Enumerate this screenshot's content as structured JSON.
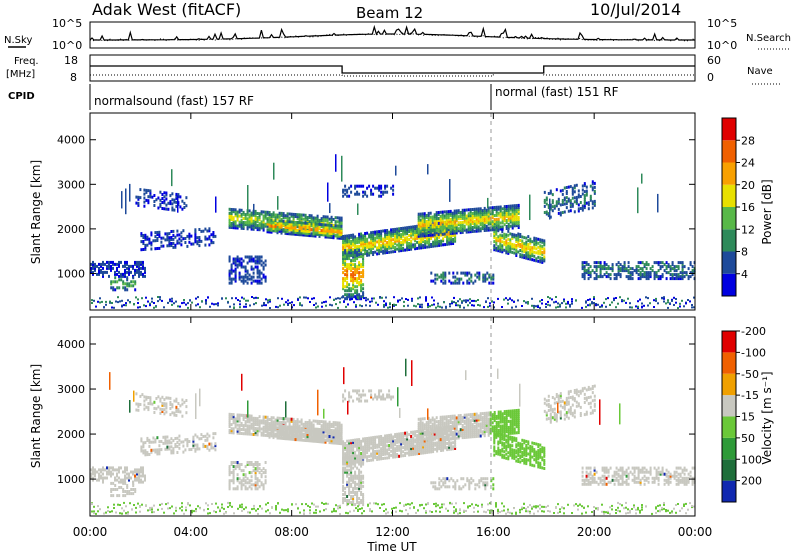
{
  "header": {
    "station": "Adak West (fitACF)",
    "beam": "Beam 12",
    "date": "10/Jul/2014"
  },
  "nsky_panel": {
    "left_label": "N.Sky",
    "right_label": "N.Search",
    "y_top": "10^5",
    "y_bottom": "10^0",
    "y_top_right": "10^5",
    "y_bottom_right": "10^0"
  },
  "freq_panel": {
    "left_label": "Freq.",
    "unit": "[MHz]",
    "right_label": "Nave",
    "ticks_left": [
      "18",
      "8"
    ],
    "ticks_right": [
      "60",
      "0"
    ],
    "cpid_label": "CPID",
    "programs": [
      "normalsound (fast) 157 RF",
      "normal (fast) 151 RF"
    ]
  },
  "chart_data": [
    {
      "type": "heatmap",
      "title": "Power",
      "ylabel": "Slant Range [km]",
      "xlabel": "Time UT",
      "ylim": [
        180,
        4600
      ],
      "xlim": [
        0,
        24
      ],
      "y_ticks": [
        "1000",
        "2000",
        "3000",
        "4000"
      ],
      "x_ticks": [
        "00:00",
        "04:00",
        "08:00",
        "12:00",
        "16:00",
        "20:00",
        "00:00"
      ],
      "colorbar": {
        "label": "Power [dB]",
        "ticks": [
          "4",
          "8",
          "12",
          "16",
          "20",
          "24",
          "28"
        ],
        "colors": [
          "#0000e0",
          "#1e4a9a",
          "#2e8a5a",
          "#58b848",
          "#e8e000",
          "#f8a000",
          "#f06000",
          "#e00000"
        ]
      }
    },
    {
      "type": "heatmap",
      "title": "Velocity",
      "ylabel": "Slant Range [km]",
      "xlabel": "Time UT",
      "ylim": [
        180,
        4600
      ],
      "xlim": [
        0,
        24
      ],
      "y_ticks": [
        "1000",
        "2000",
        "3000",
        "4000"
      ],
      "x_ticks": [
        "00:00",
        "04:00",
        "08:00",
        "12:00",
        "16:00",
        "20:00",
        "00:00"
      ],
      "colorbar": {
        "label": "Velocity [m s⁻¹]",
        "ticks": [
          "200",
          "100",
          "50",
          "15",
          "-15",
          "-50",
          "-100",
          "-200"
        ],
        "colors": [
          "#1028b0",
          "#1e6e3a",
          "#2e9a38",
          "#6ac838",
          "#c8c8c0",
          "#f0a000",
          "#f06000",
          "#e00000"
        ]
      }
    }
  ]
}
